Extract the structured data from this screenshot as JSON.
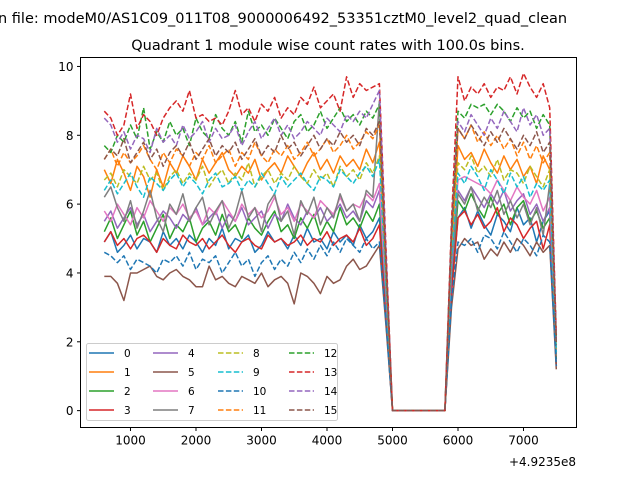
{
  "chart_data": {
    "type": "line",
    "suptitle": "n file: modeM0/AS1C09_011T08_9000006492_53351cztM0_level2_quad_clean",
    "title": "Quadrant 1 module wise count rates with 100.0s bins.",
    "xlabel": "",
    "ylabel": "",
    "x_offset_label": "+4.9235e8",
    "xlim": [
      237,
      7809
    ],
    "ylim": [
      -0.49,
      10.26
    ],
    "xticks": [
      1000,
      2000,
      3000,
      4000,
      5000,
      6000,
      7000
    ],
    "yticks": [
      0,
      2,
      4,
      6,
      8,
      10
    ],
    "grid": false,
    "legend_position": "lower-left",
    "legend_columns": 4,
    "x": [
      600,
      700,
      800,
      900,
      1000,
      1100,
      1200,
      1300,
      1400,
      1500,
      1600,
      1700,
      1800,
      1900,
      2000,
      2100,
      2200,
      2300,
      2400,
      2500,
      2600,
      2700,
      2800,
      2900,
      3000,
      3100,
      3200,
      3300,
      3400,
      3500,
      3600,
      3700,
      3800,
      3900,
      4000,
      4100,
      4200,
      4300,
      4400,
      4500,
      4600,
      4700,
      4800,
      4900,
      5000,
      5100,
      5200,
      5300,
      5400,
      5500,
      5600,
      5700,
      5800,
      5900,
      6000,
      6100,
      6200,
      6300,
      6400,
      6500,
      6600,
      6700,
      6800,
      6900,
      7000,
      7100,
      7200,
      7300,
      7400,
      7500
    ],
    "series": [
      {
        "name": "0",
        "color": "#1f77b4",
        "dash": false,
        "values": [
          4.9,
          5.2,
          4.6,
          4.8,
          5.1,
          4.7,
          5.0,
          4.9,
          4.6,
          5.2,
          4.8,
          5.0,
          4.7,
          5.1,
          4.9,
          4.6,
          5.0,
          4.8,
          5.3,
          4.7,
          5.0,
          4.9,
          5.1,
          4.6,
          4.8,
          5.2,
          4.9,
          5.0,
          4.7,
          5.1,
          4.8,
          5.3,
          4.9,
          5.0,
          4.7,
          5.2,
          4.9,
          5.1,
          4.8,
          5.4,
          5.0,
          5.2,
          5.6,
          2.8,
          0,
          0,
          0,
          0,
          0,
          0,
          0,
          0,
          0,
          3.5,
          5.6,
          5.9,
          5.3,
          5.8,
          5.4,
          5.1,
          5.7,
          5.5,
          5.2,
          5.9,
          5.4,
          5.6,
          4.9,
          5.5,
          5.8,
          1.3
        ]
      },
      {
        "name": "1",
        "color": "#ff7f0e",
        "dash": false,
        "values": [
          7.0,
          6.6,
          7.3,
          6.9,
          6.4,
          7.1,
          6.8,
          6.2,
          7.0,
          6.5,
          7.2,
          6.9,
          7.4,
          7.1,
          6.7,
          7.3,
          6.9,
          7.2,
          7.5,
          7.0,
          6.8,
          7.1,
          6.9,
          7.3,
          6.7,
          7.0,
          7.2,
          6.9,
          7.4,
          7.1,
          6.8,
          7.2,
          7.5,
          7.0,
          7.3,
          6.9,
          7.4,
          7.1,
          7.3,
          7.0,
          7.6,
          7.2,
          7.8,
          3.9,
          0,
          0,
          0,
          0,
          0,
          0,
          0,
          0,
          0,
          4.5,
          7.7,
          7.3,
          7.5,
          7.1,
          7.6,
          7.2,
          6.9,
          7.4,
          7.0,
          7.3,
          6.8,
          7.1,
          6.6,
          7.4,
          7.0,
          1.8
        ]
      },
      {
        "name": "2",
        "color": "#2ca02c",
        "dash": false,
        "values": [
          5.2,
          5.6,
          5.0,
          5.4,
          5.8,
          5.1,
          5.5,
          4.9,
          5.3,
          5.7,
          5.0,
          5.4,
          5.2,
          5.6,
          4.9,
          5.3,
          5.5,
          5.1,
          5.7,
          5.2,
          5.4,
          5.0,
          5.6,
          5.3,
          5.1,
          5.5,
          5.8,
          5.2,
          5.4,
          5.0,
          5.6,
          5.3,
          5.7,
          5.1,
          5.5,
          5.2,
          5.9,
          5.4,
          5.6,
          5.3,
          5.8,
          5.5,
          6.0,
          3.0,
          0,
          0,
          0,
          0,
          0,
          0,
          0,
          0,
          0,
          3.8,
          6.1,
          5.8,
          6.3,
          5.9,
          5.6,
          6.2,
          5.7,
          6.0,
          5.4,
          5.9,
          6.1,
          5.5,
          5.8,
          5.3,
          5.6,
          1.5
        ]
      },
      {
        "name": "3",
        "color": "#d62728",
        "dash": false,
        "values": [
          4.9,
          5.2,
          4.8,
          5.0,
          4.7,
          5.0,
          5.1,
          4.9,
          4.6,
          5.0,
          4.8,
          4.7,
          5.1,
          4.9,
          4.8,
          5.0,
          4.7,
          4.9,
          5.1,
          4.8,
          4.6,
          4.9,
          5.0,
          4.8,
          4.7,
          5.1,
          4.9,
          5.0,
          4.8,
          4.9,
          5.1,
          4.8,
          5.0,
          4.9,
          5.2,
          4.8,
          5.0,
          5.1,
          4.9,
          5.3,
          4.8,
          5.0,
          5.4,
          2.7,
          0,
          0,
          0,
          0,
          0,
          0,
          0,
          0,
          0,
          3.4,
          5.6,
          5.8,
          5.4,
          5.7,
          5.3,
          5.5,
          5.9,
          5.2,
          5.6,
          5.4,
          5.0,
          5.3,
          5.5,
          4.7,
          5.4,
          1.3
        ]
      },
      {
        "name": "4",
        "color": "#9467bd",
        "dash": false,
        "values": [
          5.5,
          5.8,
          5.3,
          5.6,
          5.9,
          5.4,
          5.7,
          5.2,
          5.5,
          5.8,
          5.6,
          5.3,
          5.7,
          5.5,
          5.9,
          5.4,
          5.6,
          5.8,
          5.3,
          5.7,
          5.5,
          5.9,
          5.4,
          5.6,
          5.8,
          5.3,
          5.7,
          5.5,
          6.0,
          5.6,
          5.4,
          5.8,
          5.6,
          5.9,
          5.5,
          5.7,
          6.0,
          5.6,
          5.8,
          5.5,
          6.1,
          5.9,
          6.4,
          3.3,
          0,
          0,
          0,
          0,
          0,
          0,
          0,
          0,
          0,
          4.0,
          6.4,
          6.1,
          6.5,
          6.2,
          5.9,
          6.3,
          6.0,
          6.4,
          5.8,
          6.1,
          6.3,
          5.7,
          6.0,
          5.5,
          5.9,
          1.6
        ]
      },
      {
        "name": "5",
        "color": "#8c564b",
        "dash": false,
        "values": [
          3.9,
          3.9,
          3.7,
          3.2,
          4.0,
          4.0,
          4.1,
          4.2,
          3.9,
          3.8,
          4.0,
          4.1,
          3.9,
          3.8,
          3.6,
          3.6,
          4.2,
          3.8,
          3.9,
          3.7,
          3.6,
          3.9,
          3.8,
          3.7,
          4.0,
          3.6,
          3.8,
          3.9,
          3.7,
          3.1,
          4.0,
          3.9,
          3.7,
          3.4,
          3.9,
          3.7,
          3.8,
          4.2,
          4.4,
          4.1,
          4.2,
          4.5,
          4.8,
          2.5,
          0,
          0,
          0,
          0,
          0,
          0,
          0,
          0,
          0,
          3.0,
          4.7,
          5.0,
          4.8,
          4.9,
          4.4,
          4.7,
          4.5,
          4.9,
          4.6,
          5.0,
          4.8,
          4.5,
          4.9,
          4.6,
          4.8,
          1.2
        ]
      },
      {
        "name": "6",
        "color": "#e377c2",
        "dash": false,
        "values": [
          5.8,
          5.5,
          6.0,
          5.7,
          5.4,
          5.9,
          5.6,
          6.1,
          5.8,
          5.5,
          5.9,
          5.7,
          6.0,
          5.6,
          5.8,
          5.4,
          5.9,
          5.7,
          6.1,
          5.8,
          5.5,
          6.0,
          5.7,
          5.9,
          5.6,
          5.8,
          6.2,
          5.7,
          5.9,
          5.5,
          6.0,
          5.8,
          5.6,
          6.1,
          5.9,
          5.7,
          6.2,
          5.8,
          6.0,
          5.9,
          6.3,
          6.1,
          6.6,
          3.5,
          0,
          0,
          0,
          0,
          0,
          0,
          0,
          0,
          0,
          4.3,
          6.7,
          6.8,
          6.7,
          6.6,
          6.5,
          6.3,
          6.7,
          6.4,
          6.1,
          6.5,
          6.2,
          6.0,
          6.4,
          5.8,
          6.2,
          1.7
        ]
      },
      {
        "name": "7",
        "color": "#7f7f7f",
        "dash": false,
        "values": [
          6.2,
          6.5,
          5.9,
          5.5,
          6.1,
          5.3,
          5.8,
          6.4,
          5.6,
          5.2,
          6.0,
          5.7,
          6.3,
          5.5,
          5.9,
          6.2,
          5.4,
          5.8,
          6.1,
          5.3,
          5.7,
          6.4,
          5.6,
          5.9,
          5.2,
          6.0,
          6.3,
          5.5,
          5.8,
          5.1,
          6.1,
          5.7,
          6.2,
          5.4,
          5.9,
          5.6,
          6.3,
          5.8,
          6.0,
          5.5,
          6.4,
          6.2,
          9.0,
          3.6,
          0,
          0,
          0,
          0,
          0,
          0,
          0,
          0,
          0,
          4.4,
          6.3,
          6.0,
          6.5,
          5.8,
          6.2,
          5.9,
          6.4,
          5.7,
          6.1,
          5.6,
          6.0,
          5.4,
          5.9,
          5.1,
          6.6,
          1.6
        ]
      },
      {
        "name": "8",
        "color": "#bcbd22",
        "dash": true,
        "values": [
          6.7,
          6.9,
          6.5,
          7.0,
          6.8,
          6.6,
          7.1,
          6.7,
          6.9,
          6.4,
          6.8,
          7.0,
          6.6,
          6.9,
          6.7,
          7.1,
          6.5,
          6.8,
          7.0,
          6.6,
          6.9,
          6.7,
          7.2,
          6.5,
          6.8,
          7.0,
          6.6,
          6.9,
          6.7,
          7.1,
          6.8,
          6.6,
          7.0,
          6.7,
          6.9,
          6.5,
          7.1,
          6.8,
          7.0,
          6.7,
          7.2,
          6.9,
          7.4,
          3.8,
          0,
          0,
          0,
          0,
          0,
          0,
          0,
          0,
          0,
          4.6,
          7.2,
          7.0,
          7.4,
          6.9,
          7.1,
          6.8,
          7.3,
          6.7,
          7.0,
          6.9,
          6.6,
          7.1,
          6.8,
          6.5,
          7.0,
          1.8
        ]
      },
      {
        "name": "9",
        "color": "#17becf",
        "dash": true,
        "values": [
          6.4,
          6.7,
          6.3,
          6.6,
          6.9,
          6.5,
          6.2,
          6.8,
          6.6,
          6.4,
          6.7,
          6.9,
          6.5,
          6.8,
          6.6,
          6.3,
          6.7,
          6.9,
          6.5,
          6.6,
          6.8,
          6.4,
          6.7,
          6.5,
          6.9,
          6.6,
          6.3,
          6.8,
          6.5,
          6.7,
          6.9,
          6.6,
          6.4,
          6.8,
          6.7,
          6.5,
          7.0,
          6.8,
          6.6,
          6.9,
          7.1,
          6.8,
          7.3,
          3.7,
          0,
          0,
          0,
          0,
          0,
          0,
          0,
          0,
          0,
          4.4,
          6.9,
          6.6,
          7.1,
          6.8,
          6.4,
          7.0,
          6.7,
          6.3,
          6.9,
          6.5,
          6.8,
          6.2,
          6.6,
          6.4,
          6.7,
          1.7
        ]
      },
      {
        "name": "10",
        "color": "#1f77b4",
        "dash": true,
        "values": [
          4.6,
          4.5,
          4.3,
          4.5,
          4.1,
          4.4,
          4.3,
          4.2,
          4.0,
          4.4,
          4.3,
          4.5,
          4.2,
          4.6,
          4.1,
          4.4,
          4.3,
          4.5,
          4.0,
          4.3,
          4.6,
          4.2,
          4.4,
          3.9,
          4.3,
          4.5,
          4.1,
          4.4,
          4.2,
          4.6,
          4.3,
          4.7,
          4.4,
          4.8,
          4.5,
          4.9,
          4.6,
          5.0,
          4.8,
          4.6,
          5.0,
          4.7,
          4.9,
          2.6,
          0,
          0,
          0,
          0,
          0,
          0,
          0,
          0,
          0,
          3.2,
          4.9,
          4.8,
          5.0,
          4.6,
          5.1,
          5.0,
          4.7,
          5.2,
          4.9,
          4.6,
          5.0,
          4.8,
          4.5,
          5.1,
          4.9,
          1.3
        ]
      },
      {
        "name": "11",
        "color": "#ff7f0e",
        "dash": true,
        "values": [
          7.3,
          7.6,
          7.1,
          7.5,
          7.2,
          7.4,
          7.7,
          7.3,
          7.0,
          7.5,
          7.2,
          7.6,
          7.4,
          7.1,
          7.5,
          7.3,
          7.7,
          7.2,
          7.4,
          7.6,
          7.1,
          7.5,
          7.3,
          7.8,
          7.4,
          7.2,
          7.6,
          7.4,
          7.7,
          7.3,
          7.5,
          7.8,
          7.4,
          7.6,
          7.9,
          7.5,
          7.7,
          8.0,
          7.6,
          7.8,
          8.1,
          7.9,
          8.3,
          4.2,
          0,
          0,
          0,
          0,
          0,
          0,
          0,
          0,
          0,
          5.0,
          8.2,
          7.9,
          8.3,
          7.8,
          8.1,
          7.7,
          8.0,
          7.6,
          7.9,
          7.4,
          7.8,
          7.3,
          7.7,
          7.2,
          7.5,
          2.0
        ]
      },
      {
        "name": "12",
        "color": "#2ca02c",
        "dash": true,
        "values": [
          7.7,
          7.5,
          8.0,
          7.8,
          8.3,
          7.9,
          8.8,
          7.6,
          8.1,
          7.8,
          8.4,
          8.0,
          8.2,
          7.7,
          8.5,
          8.1,
          7.9,
          8.6,
          8.2,
          8.0,
          8.4,
          7.8,
          8.7,
          8.1,
          8.3,
          8.0,
          8.5,
          8.2,
          7.9,
          8.4,
          8.6,
          8.1,
          8.3,
          8.7,
          8.2,
          8.5,
          8.8,
          8.4,
          8.6,
          8.3,
          8.7,
          8.5,
          8.9,
          4.5,
          0,
          0,
          0,
          0,
          0,
          0,
          0,
          0,
          0,
          5.3,
          8.7,
          8.5,
          8.9,
          8.8,
          8.9,
          8.6,
          8.9,
          8.7,
          8.4,
          8.8,
          8.5,
          8.7,
          8.2,
          8.6,
          8.3,
          2.1
        ]
      },
      {
        "name": "13",
        "color": "#d62728",
        "dash": true,
        "values": [
          8.7,
          8.5,
          8.0,
          8.3,
          9.2,
          8.2,
          8.6,
          8.4,
          8.0,
          8.5,
          8.8,
          9.0,
          8.7,
          9.3,
          8.5,
          8.6,
          8.4,
          8.5,
          8.3,
          8.7,
          9.3,
          8.6,
          8.8,
          8.4,
          8.9,
          8.7,
          9.1,
          8.5,
          8.8,
          8.6,
          9.1,
          8.9,
          9.4,
          8.8,
          9.0,
          9.2,
          8.7,
          9.7,
          9.1,
          9.5,
          9.3,
          9.4,
          9.5,
          4.8,
          0,
          0,
          0,
          0,
          0,
          0,
          0,
          0,
          0,
          5.5,
          9.7,
          9.0,
          9.4,
          9.2,
          9.5,
          9.1,
          9.4,
          9.3,
          9.7,
          9.2,
          9.8,
          9.4,
          9.1,
          9.5,
          8.8,
          2.2
        ]
      },
      {
        "name": "14",
        "color": "#9467bd",
        "dash": true,
        "values": [
          8.5,
          8.3,
          7.8,
          8.1,
          7.6,
          8.0,
          7.9,
          7.5,
          8.2,
          7.8,
          8.0,
          7.7,
          8.3,
          7.9,
          8.1,
          8.4,
          7.8,
          8.2,
          7.9,
          8.0,
          8.3,
          7.7,
          8.1,
          8.4,
          7.9,
          8.2,
          8.5,
          8.0,
          8.3,
          7.9,
          8.1,
          8.4,
          8.2,
          8.0,
          8.5,
          8.3,
          8.1,
          8.6,
          8.4,
          8.7,
          8.5,
          8.9,
          9.3,
          4.6,
          0,
          0,
          0,
          0,
          0,
          0,
          0,
          0,
          0,
          5.2,
          8.4,
          8.1,
          8.6,
          8.3,
          8.0,
          8.5,
          8.2,
          8.7,
          8.4,
          8.1,
          8.8,
          8.3,
          8.6,
          8.0,
          8.2,
          2.0
        ]
      },
      {
        "name": "15",
        "color": "#8c564b",
        "dash": true,
        "values": [
          7.3,
          7.6,
          7.4,
          7.9,
          7.2,
          7.5,
          7.8,
          7.3,
          7.6,
          7.1,
          7.5,
          7.7,
          7.4,
          7.8,
          7.3,
          7.6,
          7.9,
          7.4,
          7.7,
          7.5,
          7.8,
          7.3,
          7.6,
          7.9,
          7.4,
          7.7,
          7.5,
          8.0,
          7.6,
          7.8,
          7.4,
          7.7,
          8.0,
          7.6,
          7.9,
          7.7,
          8.1,
          7.8,
          8.0,
          7.7,
          8.2,
          8.0,
          8.4,
          4.3,
          0,
          0,
          0,
          0,
          0,
          0,
          0,
          0,
          0,
          5.1,
          8.2,
          7.9,
          8.3,
          8.0,
          7.7,
          8.1,
          7.8,
          8.2,
          7.9,
          7.6,
          8.0,
          7.7,
          8.1,
          7.5,
          7.8,
          1.9
        ]
      }
    ]
  }
}
